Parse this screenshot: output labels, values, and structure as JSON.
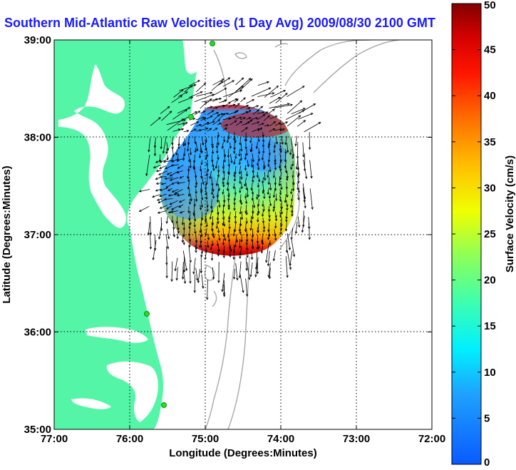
{
  "title": "Southern Mid-Atlantic Raw Velocities (1 Day Avg) 2009/08/30 2100 GMT",
  "map": {
    "xlabel": "Longitude (Degrees:Minutes)",
    "ylabel": "Latitude (Degrees:Minutes)",
    "xticks": [
      "77:00",
      "76:00",
      "75:00",
      "74:00",
      "73:00",
      "72:00"
    ],
    "yticks": [
      "39:00",
      "38:00",
      "37:00",
      "36:00",
      "35:00"
    ],
    "land_color": "#55f5a8",
    "grid": "dotted"
  },
  "colorbar": {
    "label": "Surface Velocity (cm/s)",
    "ticks": [
      "0",
      "5",
      "10",
      "15",
      "20",
      "25",
      "30",
      "35",
      "40",
      "45",
      "50"
    ],
    "range": [
      0,
      50
    ],
    "colormap": "jet"
  }
}
